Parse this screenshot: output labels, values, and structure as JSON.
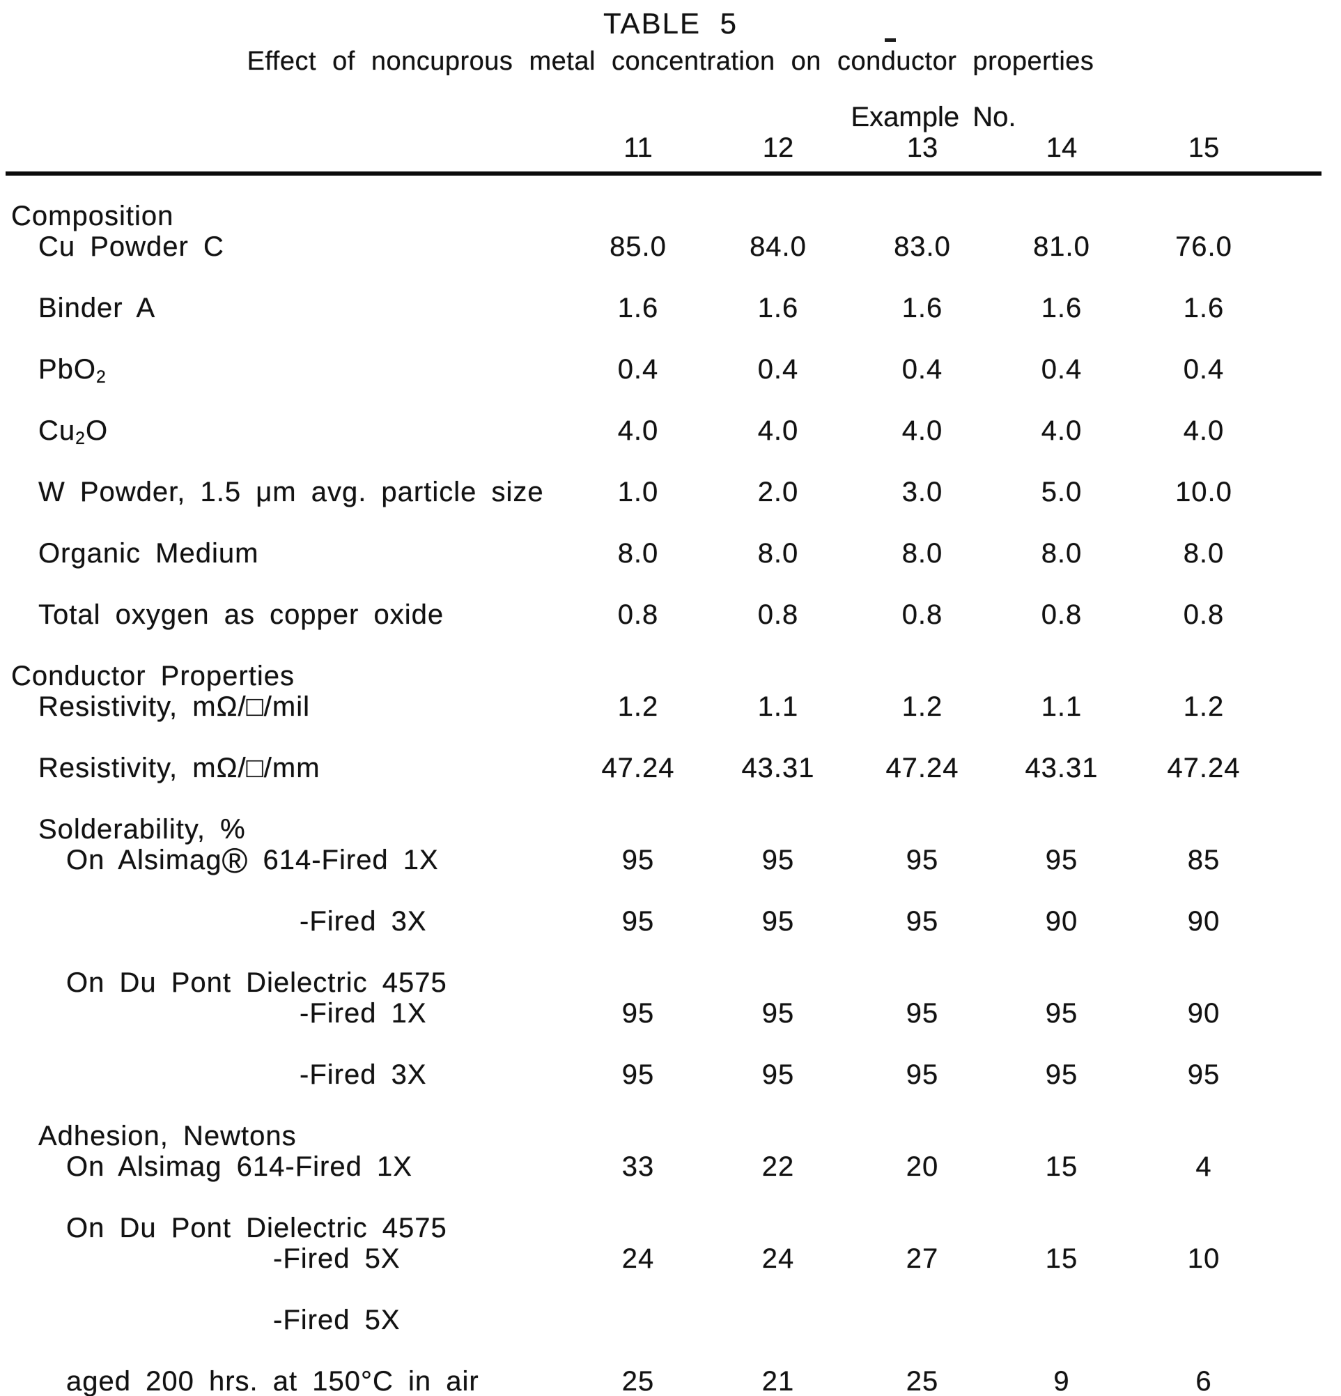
{
  "document": {
    "title": "TABLE 5",
    "subtitle": "Effect of noncuprous metal concentration on conductor properties"
  },
  "header": {
    "group_label": "Example No.",
    "columns": [
      "11",
      "12",
      "13",
      "14",
      "15"
    ]
  },
  "rows": [
    {
      "id": "composition",
      "kind": "section",
      "indent": "l0",
      "label": "Composition"
    },
    {
      "id": "cu-powder-c",
      "kind": "data",
      "indent": "l1",
      "label": "Cu Powder C",
      "values": [
        "85.0",
        "84.0",
        "83.0",
        "81.0",
        "76.0"
      ]
    },
    {
      "id": "binder-a",
      "kind": "data",
      "indent": "l1",
      "label": "Binder A",
      "values": [
        "1.6",
        "1.6",
        "1.6",
        "1.6",
        "1.6"
      ]
    },
    {
      "id": "pbo2",
      "kind": "data",
      "indent": "l1",
      "label_pre": "PbO",
      "label_sub": "2",
      "label_post": "",
      "values": [
        "0.4",
        "0.4",
        "0.4",
        "0.4",
        "0.4"
      ]
    },
    {
      "id": "cu2o",
      "kind": "data",
      "indent": "l1",
      "label_pre": "Cu",
      "label_sub": "2",
      "label_post": "O",
      "values": [
        "4.0",
        "4.0",
        "4.0",
        "4.0",
        "4.0"
      ]
    },
    {
      "id": "w-powder",
      "kind": "data",
      "indent": "l1",
      "label": "W Powder, 1.5 μm avg. particle size",
      "values": [
        "1.0",
        "2.0",
        "3.0",
        "5.0",
        "10.0"
      ]
    },
    {
      "id": "organic-medium",
      "kind": "data",
      "indent": "l1",
      "label": "Organic Medium",
      "values": [
        "8.0",
        "8.0",
        "8.0",
        "8.0",
        "8.0"
      ]
    },
    {
      "id": "total-oxygen",
      "kind": "data",
      "indent": "l1",
      "label": "Total oxygen as copper oxide",
      "values": [
        "0.8",
        "0.8",
        "0.8",
        "0.8",
        "0.8"
      ]
    },
    {
      "id": "conductor-properties",
      "kind": "section",
      "indent": "l0",
      "label": "Conductor Properties"
    },
    {
      "id": "resistivity-mil",
      "kind": "data",
      "indent": "l1",
      "label": "Resistivity, mΩ/□/mil",
      "values": [
        "1.2",
        "1.1",
        "1.2",
        "1.1",
        "1.2"
      ]
    },
    {
      "id": "resistivity-mm",
      "kind": "data",
      "indent": "l1",
      "label": "Resistivity, mΩ/□/mm",
      "values": [
        "47.24",
        "43.31",
        "47.24",
        "43.31",
        "47.24"
      ]
    },
    {
      "id": "solderability",
      "kind": "section",
      "indent": "l1",
      "label": "Solderability, %"
    },
    {
      "id": "sold-alsimag-fired-1x",
      "kind": "data",
      "indent": "l2",
      "label_pre": "On Alsimag",
      "label_reg": "®",
      "label_post": " 614-Fired 1X",
      "values": [
        "95",
        "95",
        "95",
        "95",
        "85"
      ]
    },
    {
      "id": "sold-alsimag-fired-3x",
      "kind": "data",
      "indent": "l3",
      "label": "-Fired 3X",
      "values": [
        "95",
        "95",
        "95",
        "90",
        "90"
      ]
    },
    {
      "id": "sold-dupont-4575",
      "kind": "section",
      "indent": "l2",
      "label": "On Du Pont Dielectric 4575"
    },
    {
      "id": "sold-dupont-fired-1x",
      "kind": "data",
      "indent": "l3",
      "label": "-Fired 1X",
      "values": [
        "95",
        "95",
        "95",
        "95",
        "90"
      ]
    },
    {
      "id": "sold-dupont-fired-3x",
      "kind": "data",
      "indent": "l3",
      "label": "-Fired 3X",
      "values": [
        "95",
        "95",
        "95",
        "95",
        "95"
      ]
    },
    {
      "id": "adhesion",
      "kind": "section",
      "indent": "l1",
      "label": "Adhesion, Newtons"
    },
    {
      "id": "adh-alsimag-fired-1x",
      "kind": "data",
      "indent": "l2",
      "label": "On Alsimag 614-Fired 1X",
      "values": [
        "33",
        "22",
        "20",
        "15",
        "4"
      ]
    },
    {
      "id": "adh-dupont-4575",
      "kind": "section",
      "indent": "l2",
      "label": "On Du Pont Dielectric 4575"
    },
    {
      "id": "adh-dupont-fired-5x",
      "kind": "data",
      "indent": "l3b",
      "label": "-Fired 5X",
      "values": [
        "24",
        "24",
        "27",
        "15",
        "10"
      ]
    },
    {
      "id": "adh-dupont-fired-5x-2",
      "kind": "label",
      "indent": "l3b",
      "label": "-Fired 5X"
    },
    {
      "id": "adh-aged",
      "kind": "data",
      "indent": "l2",
      "label": "aged 200 hrs. at 150°C in air",
      "values": [
        "25",
        "21",
        "25",
        "9",
        "6"
      ]
    }
  ]
}
